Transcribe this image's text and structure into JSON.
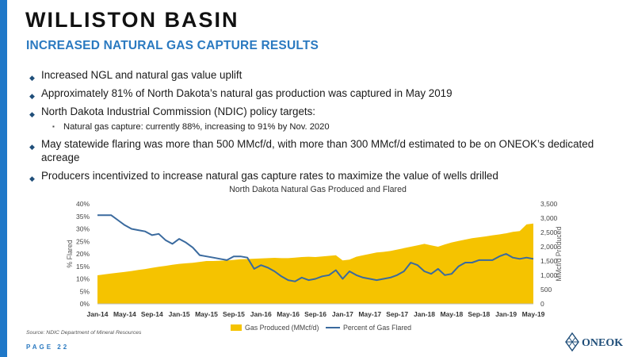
{
  "header": {
    "title": "WILLISTON BASIN",
    "subtitle": "INCREASED NATURAL GAS CAPTURE RESULTS"
  },
  "bullets": [
    "Increased NGL and natural gas value uplift",
    "Approximately 81% of North Dakota’s natural gas production was captured in May 2019",
    "North Dakota Industrial Commission (NDIC) policy targets:",
    "May statewide flaring was more than 500 MMcf/d, with more than 300 MMcf/d estimated to be on ONEOK’s dedicated acreage",
    "Producers incentivized to increase natural gas capture rates to maximize the value of wells drilled"
  ],
  "sub_bullets": [
    "Natural gas capture: currently 88%, increasing to 91% by Nov. 2020"
  ],
  "chart_data": {
    "type": "area",
    "title": "North Dakota Natural Gas Produced and Flared",
    "x": [
      "Jan-14",
      "Feb-14",
      "Mar-14",
      "Apr-14",
      "May-14",
      "Jun-14",
      "Jul-14",
      "Aug-14",
      "Sep-14",
      "Oct-14",
      "Nov-14",
      "Dec-14",
      "Jan-15",
      "Feb-15",
      "Mar-15",
      "Apr-15",
      "May-15",
      "Jun-15",
      "Jul-15",
      "Aug-15",
      "Sep-15",
      "Oct-15",
      "Nov-15",
      "Dec-15",
      "Jan-16",
      "Feb-16",
      "Mar-16",
      "Apr-16",
      "May-16",
      "Jun-16",
      "Jul-16",
      "Aug-16",
      "Sep-16",
      "Oct-16",
      "Nov-16",
      "Dec-16",
      "Jan-17",
      "Feb-17",
      "Mar-17",
      "Apr-17",
      "May-17",
      "Jun-17",
      "Jul-17",
      "Aug-17",
      "Sep-17",
      "Oct-17",
      "Nov-17",
      "Dec-17",
      "Jan-18",
      "Feb-18",
      "Mar-18",
      "Apr-18",
      "May-18",
      "Jun-18",
      "Jul-18",
      "Aug-18",
      "Sep-18",
      "Oct-18",
      "Nov-18",
      "Dec-18",
      "Jan-19",
      "Feb-19",
      "Mar-19",
      "Apr-19",
      "May-19"
    ],
    "x_tick_labels": [
      "Jan-14",
      "May-14",
      "Sep-14",
      "Jan-15",
      "May-15",
      "Sep-15",
      "Jan-16",
      "May-16",
      "Sep-16",
      "Jan-17",
      "May-17",
      "Sep-17",
      "Jan-18",
      "May-18",
      "Sep-18",
      "Jan-19",
      "May-19"
    ],
    "series": [
      {
        "name": "Gas Produced (MMcf/d)",
        "axis": "right",
        "color": "#f5c300",
        "values": [
          1000,
          1030,
          1060,
          1090,
          1120,
          1150,
          1190,
          1220,
          1260,
          1300,
          1330,
          1370,
          1400,
          1420,
          1440,
          1470,
          1500,
          1500,
          1510,
          1520,
          1540,
          1560,
          1570,
          1580,
          1590,
          1600,
          1610,
          1600,
          1600,
          1620,
          1640,
          1650,
          1640,
          1660,
          1680,
          1700,
          1520,
          1550,
          1650,
          1700,
          1750,
          1800,
          1820,
          1850,
          1900,
          1950,
          2000,
          2050,
          2100,
          2050,
          2000,
          2080,
          2150,
          2200,
          2250,
          2300,
          2330,
          2360,
          2400,
          2430,
          2470,
          2520,
          2550,
          2780,
          2810
        ]
      },
      {
        "name": "Percent of Gas Flared",
        "axis": "left",
        "color": "#3a6a9e",
        "values": [
          35.5,
          35.5,
          35.5,
          33.5,
          31.5,
          30.0,
          29.5,
          29.0,
          27.5,
          28.0,
          25.5,
          24.0,
          26.0,
          24.5,
          22.5,
          19.5,
          19.0,
          18.5,
          18.0,
          17.5,
          19.0,
          19.0,
          18.5,
          14.0,
          15.5,
          14.5,
          13.0,
          11.0,
          9.5,
          9.0,
          10.5,
          9.5,
          10.0,
          11.0,
          11.5,
          13.5,
          10.0,
          13.0,
          11.5,
          10.5,
          10.0,
          9.5,
          10.0,
          10.5,
          11.5,
          13.0,
          16.5,
          15.5,
          13.0,
          12.0,
          14.0,
          11.5,
          12.0,
          15.0,
          16.5,
          16.5,
          17.5,
          17.5,
          17.5,
          19.0,
          20.0,
          18.5,
          18.0,
          18.5,
          18.0
        ]
      }
    ],
    "y_left": {
      "label": "% Flared",
      "ylim": [
        0,
        40
      ],
      "ticks": [
        "0%",
        "5%",
        "10%",
        "15%",
        "20%",
        "25%",
        "30%",
        "35%",
        "40%"
      ]
    },
    "y_right": {
      "label": "MMcf/d Produced",
      "ylim": [
        0,
        3500
      ],
      "ticks": [
        "0",
        "500",
        "1,000",
        "1,500",
        "2,000",
        "2,500",
        "3,000",
        "3,500"
      ]
    },
    "grid": false,
    "legend_position": "bottom"
  },
  "footer": {
    "source": "Source: NDIC Department of Mineral Resources",
    "page": "PAGE 22",
    "logo": "ONEOK"
  },
  "colors": {
    "accent": "#1f78c8",
    "produced": "#f5c300",
    "flared": "#3a6a9e"
  }
}
